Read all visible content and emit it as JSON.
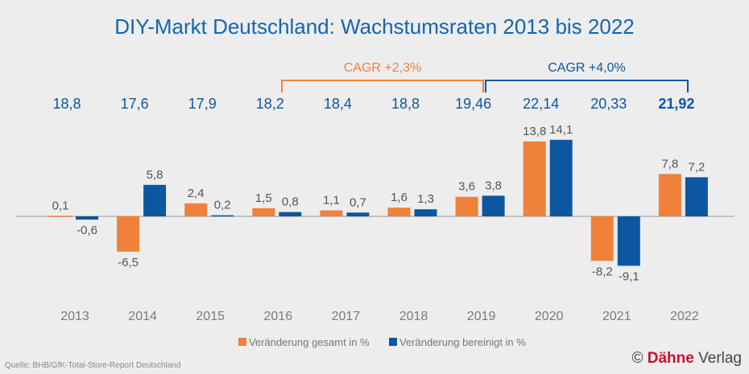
{
  "chart_data": {
    "type": "bar",
    "title": "DIY-Markt Deutschland: Wachstumsraten 2013 bis 2022",
    "categories": [
      "2013",
      "2014",
      "2015",
      "2016",
      "2017",
      "2018",
      "2019",
      "2020",
      "2021",
      "2022"
    ],
    "totals": [
      "18,8",
      "17,6",
      "17,9",
      "18,2",
      "18,4",
      "18,8",
      "19,46",
      "22,14",
      "20,33",
      "21,92"
    ],
    "series": [
      {
        "name": "Veränderung gesamt in %",
        "color": "#f0813a",
        "values": [
          0.1,
          -6.5,
          2.4,
          1.5,
          1.1,
          1.6,
          3.6,
          13.8,
          -8.2,
          7.8
        ],
        "labels": [
          "0,1",
          "-6,5",
          "2,4",
          "1,5",
          "1,1",
          "1,6",
          "3,6",
          "13,8",
          "-8,2",
          "7,8"
        ]
      },
      {
        "name": "Veränderung bereinigt in %",
        "color": "#0c57a0",
        "values": [
          -0.6,
          5.8,
          0.2,
          0.8,
          0.7,
          1.3,
          3.8,
          14.1,
          -9.1,
          7.2
        ],
        "labels": [
          "-0,6",
          "5,8",
          "0,2",
          "0,8",
          "0,7",
          "1,3",
          "3,8",
          "14,1",
          "-9,1",
          "7,2"
        ]
      }
    ],
    "annotations": [
      {
        "text": "CAGR +2,3%",
        "from": "2016",
        "to": "2019",
        "color": "#f0813a"
      },
      {
        "text": "CAGR +4,0%",
        "from": "2019",
        "to": "2022",
        "color": "#0c57a0"
      }
    ],
    "legend": "bottom"
  },
  "source": "Quelle: BHB/GfK-Total-Store-Report Deutschland",
  "copyright": {
    "symbol": "©",
    "brand": "Dähne",
    "suffix": "Verlag",
    "brand_color": "#c8102e"
  }
}
